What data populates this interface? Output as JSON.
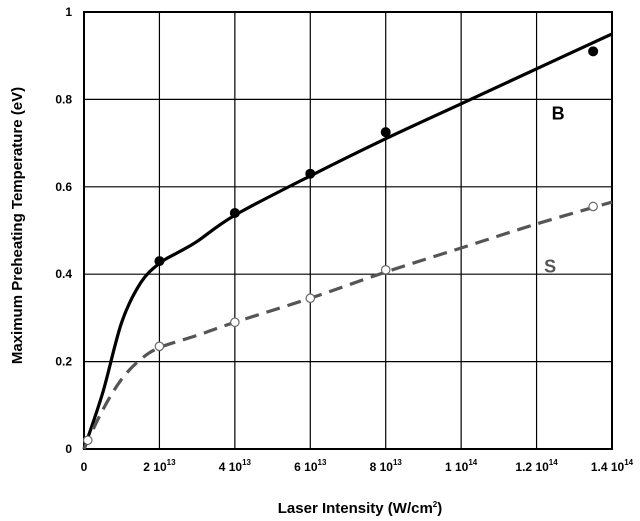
{
  "chart_data": {
    "type": "line",
    "xlabel": {
      "main": "Laser Intensity  (W/cm",
      "sup": "2",
      "close": ")"
    },
    "ylabel": "Maximum Preheating Temperature  (eV)",
    "xlim": [
      0,
      140000000000000.0
    ],
    "ylim": [
      0,
      1
    ],
    "grid": true,
    "x_ticks": [
      {
        "value": 0,
        "mant": "0",
        "exp": ""
      },
      {
        "value": 20000000000000.0,
        "mant": "2 10",
        "exp": "13"
      },
      {
        "value": 40000000000000.0,
        "mant": "4 10",
        "exp": "13"
      },
      {
        "value": 60000000000000.0,
        "mant": "6 10",
        "exp": "13"
      },
      {
        "value": 80000000000000.0,
        "mant": "8 10",
        "exp": "13"
      },
      {
        "value": 100000000000000.0,
        "mant": "1 10",
        "exp": "14"
      },
      {
        "value": 120000000000000.0,
        "mant": "1.2 10",
        "exp": "14"
      },
      {
        "value": 140000000000000.0,
        "mant": "1.4 10",
        "exp": "14"
      }
    ],
    "y_ticks": [
      {
        "value": 0,
        "label": "0"
      },
      {
        "value": 0.2,
        "label": "0.2"
      },
      {
        "value": 0.4,
        "label": "0.4"
      },
      {
        "value": 0.6,
        "label": "0.6"
      },
      {
        "value": 0.8,
        "label": "0.8"
      },
      {
        "value": 1,
        "label": "1"
      }
    ],
    "series": [
      {
        "name": "B",
        "color": "#000000",
        "line_style": "solid",
        "marker": "filled-circle",
        "points": [
          [
            20000000000000.0,
            0.43
          ],
          [
            40000000000000.0,
            0.54
          ],
          [
            60000000000000.0,
            0.63
          ],
          [
            80000000000000.0,
            0.725
          ],
          [
            135000000000000.0,
            0.91
          ]
        ],
        "curve": [
          [
            0,
            0
          ],
          [
            5000000000000.0,
            0.13
          ],
          [
            10000000000000.0,
            0.29
          ],
          [
            15000000000000.0,
            0.38
          ],
          [
            20000000000000.0,
            0.425
          ],
          [
            25000000000000.0,
            0.45
          ],
          [
            30000000000000.0,
            0.475
          ],
          [
            40000000000000.0,
            0.535
          ],
          [
            60000000000000.0,
            0.625
          ],
          [
            80000000000000.0,
            0.71
          ],
          [
            100000000000000.0,
            0.79
          ],
          [
            120000000000000.0,
            0.87
          ],
          [
            140000000000000.0,
            0.95
          ]
        ]
      },
      {
        "name": "S",
        "color": "#555555",
        "line_style": "dashed",
        "marker": "open-circle",
        "points": [
          [
            1000000000000.0,
            0.02
          ],
          [
            20000000000000.0,
            0.235
          ],
          [
            40000000000000.0,
            0.29
          ],
          [
            60000000000000.0,
            0.345
          ],
          [
            80000000000000.0,
            0.41
          ],
          [
            135000000000000.0,
            0.555
          ]
        ],
        "curve": [
          [
            0,
            0
          ],
          [
            5000000000000.0,
            0.09
          ],
          [
            10000000000000.0,
            0.16
          ],
          [
            15000000000000.0,
            0.205
          ],
          [
            20000000000000.0,
            0.232
          ],
          [
            30000000000000.0,
            0.26
          ],
          [
            40000000000000.0,
            0.29
          ],
          [
            60000000000000.0,
            0.345
          ],
          [
            80000000000000.0,
            0.405
          ],
          [
            100000000000000.0,
            0.46
          ],
          [
            120000000000000.0,
            0.515
          ],
          [
            140000000000000.0,
            0.565
          ]
        ]
      }
    ],
    "annotations": [
      {
        "text": "B",
        "series": "B",
        "x": 124000000000000.0,
        "y": 0.77
      },
      {
        "text": "S",
        "series": "S",
        "x": 122000000000000.0,
        "y": 0.42
      }
    ]
  }
}
